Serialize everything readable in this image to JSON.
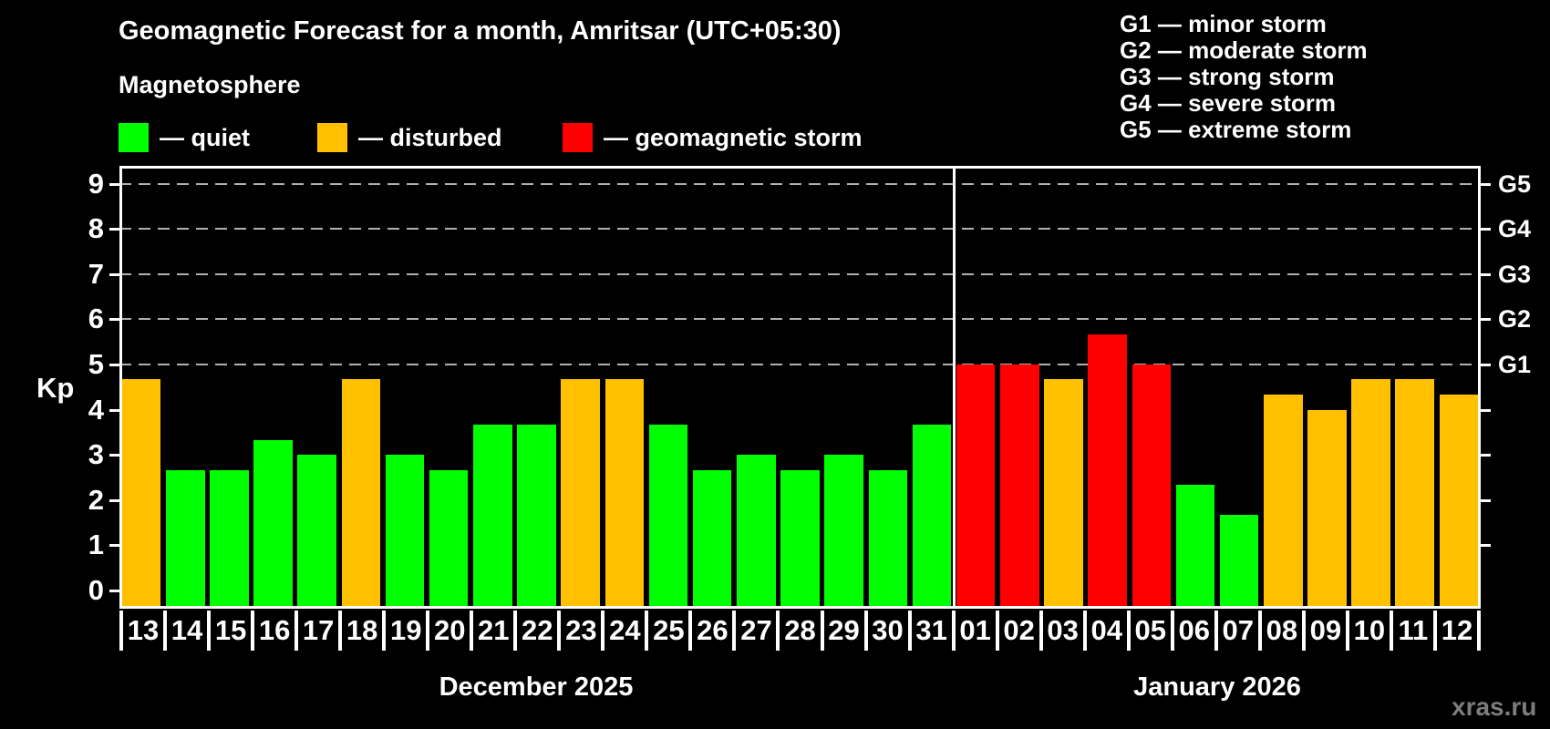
{
  "header": {
    "title": "Geomagnetic Forecast for a month, Amritsar (UTC+05:30)",
    "subtitle": "Magnetosphere"
  },
  "legend": {
    "items": [
      {
        "key": "quiet",
        "label": "— quiet",
        "color": "#00ff00"
      },
      {
        "key": "disturbed",
        "label": "— disturbed",
        "color": "#ffc000"
      },
      {
        "key": "storm",
        "label": "— geomagnetic storm",
        "color": "#ff0000"
      }
    ]
  },
  "storm_scale": {
    "items": [
      {
        "label": "G1 — minor storm"
      },
      {
        "label": "G2 — moderate storm"
      },
      {
        "label": "G3 — strong storm"
      },
      {
        "label": "G4 — severe storm"
      },
      {
        "label": "G5 — extreme storm"
      }
    ]
  },
  "watermark": "xras.ru",
  "colors": {
    "quiet": "#00ff00",
    "disturbed": "#ffc000",
    "storm": "#ff0000",
    "grid": "#b0b0b0",
    "axis": "#ffffff",
    "background": "#000000",
    "watermark": "#7d7d7d"
  },
  "chart_data": {
    "type": "bar",
    "title": "Geomagnetic Forecast for a month, Amritsar (UTC+05:30)",
    "ylabel": "Kp",
    "ylim": [
      -0.4,
      9.45
    ],
    "y_ticks": [
      0,
      1,
      2,
      3,
      4,
      5,
      6,
      7,
      8,
      9
    ],
    "gridline_levels": [
      5,
      6,
      7,
      8,
      9
    ],
    "grid": "dashed horizontal at storm levels only",
    "legend_position": "top",
    "right_axis": [
      {
        "value": 5,
        "label": "G1"
      },
      {
        "value": 6,
        "label": "G2"
      },
      {
        "value": 7,
        "label": "G3"
      },
      {
        "value": 8,
        "label": "G4"
      },
      {
        "value": 9,
        "label": "G5"
      }
    ],
    "months": [
      {
        "label": "December 2025",
        "days": 19
      },
      {
        "label": "January 2026",
        "days": 12
      }
    ],
    "bars": [
      {
        "day": "13",
        "kp": 4.67,
        "status": "disturbed"
      },
      {
        "day": "14",
        "kp": 2.67,
        "status": "quiet"
      },
      {
        "day": "15",
        "kp": 2.67,
        "status": "quiet"
      },
      {
        "day": "16",
        "kp": 3.33,
        "status": "quiet"
      },
      {
        "day": "17",
        "kp": 3.0,
        "status": "quiet"
      },
      {
        "day": "18",
        "kp": 4.67,
        "status": "disturbed"
      },
      {
        "day": "19",
        "kp": 3.0,
        "status": "quiet"
      },
      {
        "day": "20",
        "kp": 2.67,
        "status": "quiet"
      },
      {
        "day": "21",
        "kp": 3.67,
        "status": "quiet"
      },
      {
        "day": "22",
        "kp": 3.67,
        "status": "quiet"
      },
      {
        "day": "23",
        "kp": 4.67,
        "status": "disturbed"
      },
      {
        "day": "24",
        "kp": 4.67,
        "status": "disturbed"
      },
      {
        "day": "25",
        "kp": 3.67,
        "status": "quiet"
      },
      {
        "day": "26",
        "kp": 2.67,
        "status": "quiet"
      },
      {
        "day": "27",
        "kp": 3.0,
        "status": "quiet"
      },
      {
        "day": "28",
        "kp": 2.67,
        "status": "quiet"
      },
      {
        "day": "29",
        "kp": 3.0,
        "status": "quiet"
      },
      {
        "day": "30",
        "kp": 2.67,
        "status": "quiet"
      },
      {
        "day": "31",
        "kp": 3.67,
        "status": "quiet"
      },
      {
        "day": "01",
        "kp": 5.0,
        "status": "storm"
      },
      {
        "day": "02",
        "kp": 5.0,
        "status": "storm"
      },
      {
        "day": "03",
        "kp": 4.67,
        "status": "disturbed"
      },
      {
        "day": "04",
        "kp": 5.67,
        "status": "storm"
      },
      {
        "day": "05",
        "kp": 5.0,
        "status": "storm"
      },
      {
        "day": "06",
        "kp": 2.33,
        "status": "quiet"
      },
      {
        "day": "07",
        "kp": 1.67,
        "status": "quiet"
      },
      {
        "day": "08",
        "kp": 4.33,
        "status": "disturbed"
      },
      {
        "day": "09",
        "kp": 4.0,
        "status": "disturbed"
      },
      {
        "day": "10",
        "kp": 4.67,
        "status": "disturbed"
      },
      {
        "day": "11",
        "kp": 4.67,
        "status": "disturbed"
      },
      {
        "day": "12",
        "kp": 4.33,
        "status": "disturbed"
      }
    ]
  }
}
